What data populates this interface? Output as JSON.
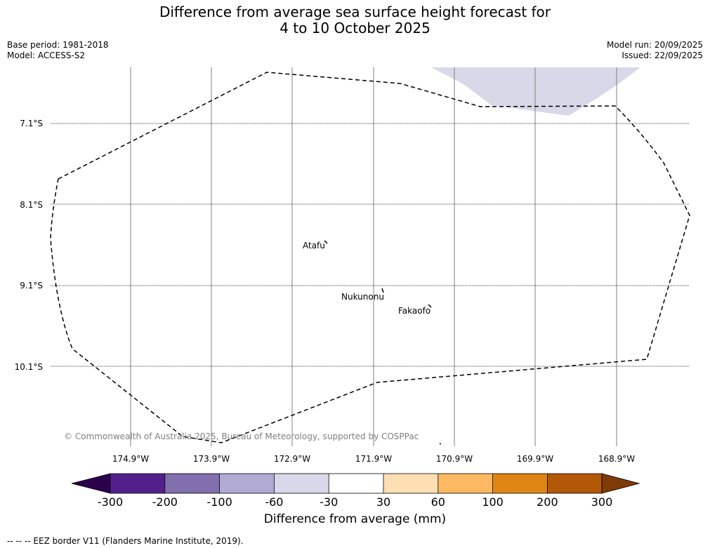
{
  "title": {
    "line1": "Difference from average sea surface height forecast for",
    "line2": "4 to 10 October 2025"
  },
  "meta_left": {
    "base_period": "Base period: 1981-2018",
    "model": "Model: ACCESS-S2"
  },
  "meta_right": {
    "model_run": "Model run: 20/09/2025",
    "issued": "Issued: 22/09/2025"
  },
  "map": {
    "longitude_labels": [
      "174.9°W",
      "173.9°W",
      "172.9°W",
      "171.9°W",
      "170.9°W",
      "169.9°W",
      "168.9°W"
    ],
    "latitude_labels": [
      "7.1°S",
      "8.1°S",
      "9.1°S",
      "10.1°S"
    ],
    "places": [
      {
        "name": "Atafu"
      },
      {
        "name": "Nukunonu"
      },
      {
        "name": "Fakaofo"
      }
    ],
    "copyright": "© Commonwealth of Australia 2025, Bureau of Meteorology, supported by COSPPac",
    "anomaly_region": {
      "category": "-60 to -30",
      "color": "#d8d8e8"
    }
  },
  "colorbar": {
    "title": "Difference from average (mm)",
    "tick_labels": [
      "-300",
      "-200",
      "-100",
      "-60",
      "-30",
      "30",
      "60",
      "100",
      "200",
      "300"
    ],
    "colors": [
      "#53208b",
      "#8170ad",
      "#b1aad3",
      "#d8d8ea",
      "#ffffff",
      "#fedfb3",
      "#fcb862",
      "#e08414",
      "#b35806"
    ],
    "extend_low_color": "#2d004b",
    "extend_high_color": "#7f3b08"
  },
  "footnote": "--  --  -- EEZ border V11 (Flanders Marine Institute, 2019)."
}
